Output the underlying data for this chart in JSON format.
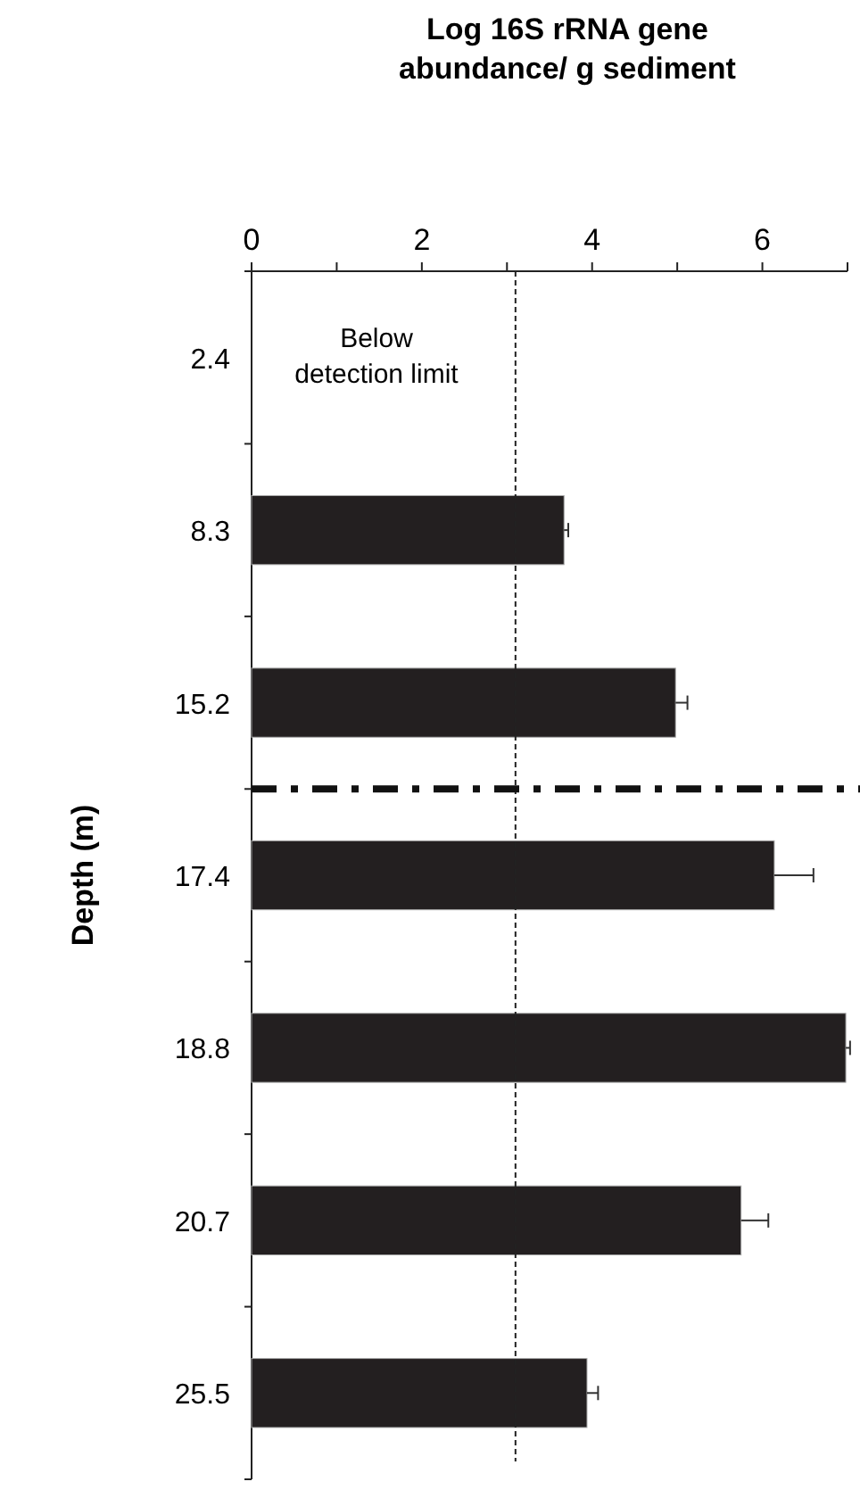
{
  "chart_data": {
    "type": "bar",
    "orientation": "horizontal",
    "xlabel": "Log 16S rRNA gene\nabundance/ g sediment",
    "ylabel": "Depth (m)",
    "categories": [
      "2.4",
      "8.3",
      "15.2",
      "17.4",
      "18.8",
      "20.7",
      "25.5"
    ],
    "values": [
      null,
      3.67,
      4.98,
      6.14,
      6.98,
      5.75,
      3.94
    ],
    "errors": [
      null,
      0.05,
      0.14,
      0.46,
      0.05,
      0.32,
      0.13
    ],
    "color": "#231f20",
    "xlim": [
      0,
      7
    ],
    "xticks": [
      0,
      {
        "value": 1,
        "label": null
      },
      2,
      {
        "value": 3,
        "label": null
      },
      4,
      {
        "value": 5,
        "label": null
      },
      6,
      {
        "value": 7,
        "label": null
      }
    ],
    "ref_lines": [
      {
        "axis": "x",
        "value": 3.1,
        "line_style": "dashed"
      },
      {
        "axis": "y",
        "value": "15.2",
        "line_style": "dashdot"
      }
    ],
    "annotations": [
      "Below\ndetection limit"
    ]
  }
}
